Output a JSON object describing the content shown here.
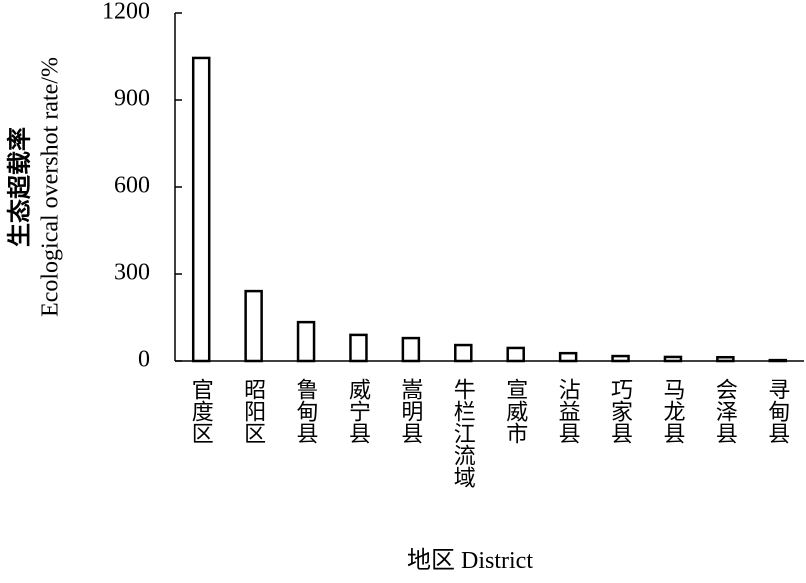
{
  "chart_data": {
    "type": "bar",
    "x_label": "地区 District",
    "y_label_lines": [
      "生态超载率",
      "Ecological overshot rate/%"
    ],
    "categories": [
      "官度区",
      "昭阳区",
      "鲁甸县",
      "威宁县",
      "嵩明县",
      "牛栏江流域",
      "宣威市",
      "沾益县",
      "巧家县",
      "马龙县",
      "会泽县",
      "寻甸县"
    ],
    "values": [
      1045,
      241,
      134,
      90,
      79,
      55,
      45,
      27,
      17,
      14,
      13,
      3
    ],
    "color": "#ffffff",
    "edge_color": "#000000",
    "ylim": [
      0,
      1200
    ],
    "yticks": [
      0,
      300,
      600,
      900,
      1200
    ],
    "grid": false
  }
}
